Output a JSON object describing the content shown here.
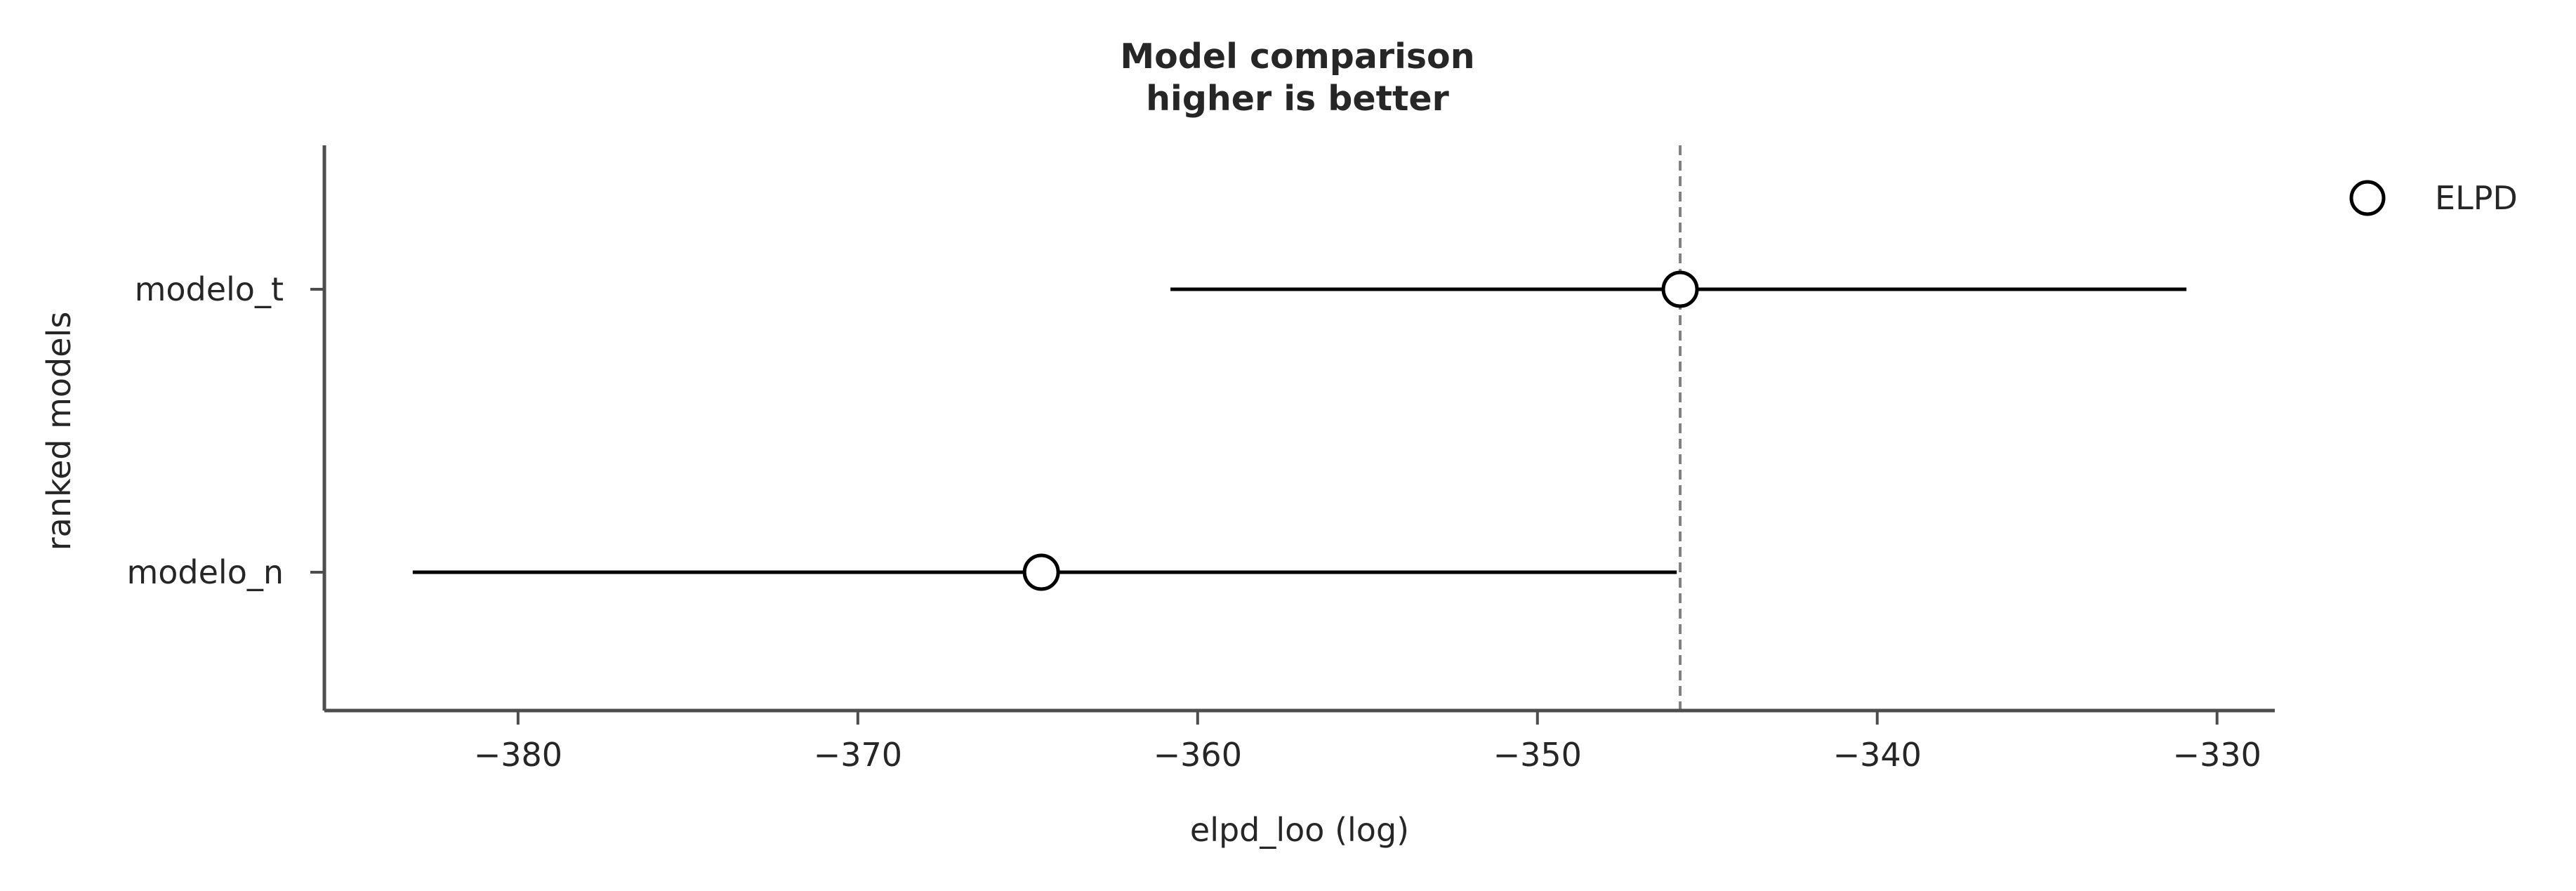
{
  "chart_data": {
    "type": "scatter",
    "title": "Model comparison",
    "subtitle": "higher is better",
    "xlabel": "elpd_loo (log)",
    "ylabel": "ranked models",
    "xlim": [
      -385.7,
      -328.3
    ],
    "xticks": [
      -380,
      -370,
      -360,
      -350,
      -340,
      -330
    ],
    "xtick_labels": [
      "−380",
      "−370",
      "−360",
      "−350",
      "−340",
      "−330"
    ],
    "grid": false,
    "legend_position": "upper right, outside plot",
    "series": [
      {
        "name": "ELPD",
        "points": [
          {
            "model": "modelo_t",
            "elpd": -345.8,
            "lower": -360.8,
            "upper": -330.9
          },
          {
            "model": "modelo_n",
            "elpd": -364.6,
            "lower": -383.1,
            "upper": -345.9
          }
        ]
      }
    ],
    "reference_line": {
      "x": -345.8,
      "style": "dashed",
      "color": "#808080"
    },
    "colors": {
      "marker_fill": "#ffffff",
      "marker_edge": "#000000",
      "error_bar": "#000000",
      "axis": "#4d4d4d",
      "text": "#262626"
    }
  }
}
